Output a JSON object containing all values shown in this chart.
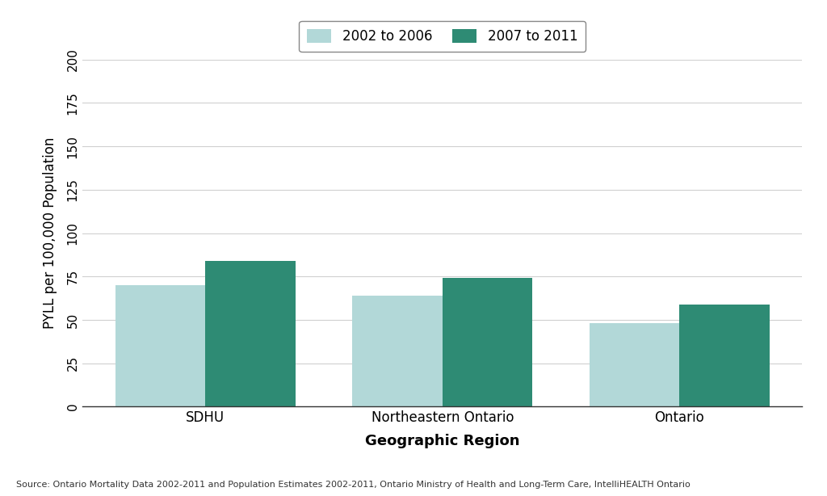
{
  "categories": [
    "SDHU",
    "Northeastern Ontario",
    "Ontario"
  ],
  "values_2002_2006": [
    70,
    64,
    48
  ],
  "values_2007_2011": [
    84,
    74,
    59
  ],
  "color_2002_2006": "#b2d8d8",
  "color_2007_2011": "#2e8b74",
  "ylabel": "PYLL per 100,000 Population",
  "xlabel": "Geographic Region",
  "ylim": [
    0,
    200
  ],
  "yticks": [
    0,
    25,
    50,
    75,
    100,
    125,
    150,
    175,
    200
  ],
  "legend_labels": [
    "2002 to 2006",
    "2007 to 2011"
  ],
  "source_text": "Source: Ontario Mortality Data 2002-2011 and Population Estimates 2002-2011, Ontario Ministry of Health and Long-Term Care, IntelliHEALTH Ontario",
  "background_color": "#ffffff",
  "grid_color": "#d0d0d0",
  "bar_width": 0.38,
  "figsize": [
    10.24,
    6.14
  ],
  "dpi": 100
}
